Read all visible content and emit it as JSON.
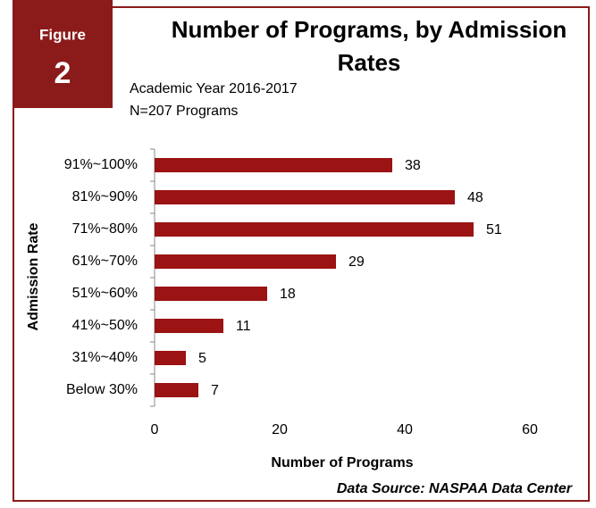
{
  "chart_data": {
    "type": "barh",
    "figure_label": "Figure",
    "figure_number": "2",
    "title": "Number of Programs, by Admission Rates",
    "subtitle": [
      "Academic Year 2016-2017",
      "N=207 Programs"
    ],
    "categories": [
      "91%~100%",
      "81%~90%",
      "71%~80%",
      "61%~70%",
      "51%~60%",
      "41%~50%",
      "31%~40%",
      "Below 30%"
    ],
    "values": [
      38,
      48,
      51,
      29,
      18,
      11,
      5,
      7
    ],
    "color": "#9b1313",
    "xlim": [
      0,
      60
    ],
    "xticks": [
      0,
      20,
      40,
      60
    ],
    "xlabel": "Number of Programs",
    "ylabel": "Admission Rate",
    "source": "Data Source: NASPAA Data Center"
  }
}
